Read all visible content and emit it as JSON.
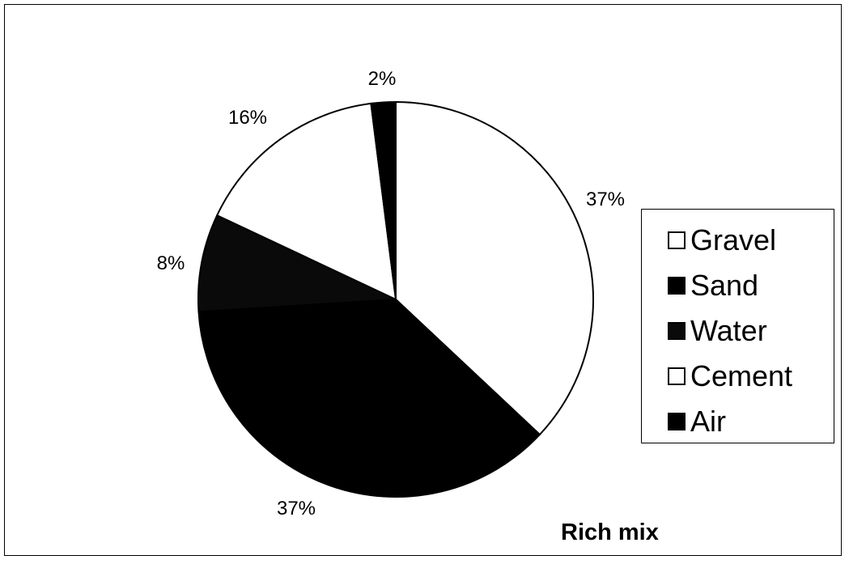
{
  "chart_data": {
    "type": "pie",
    "title": "Rich mix",
    "slices": [
      {
        "label": "Gravel",
        "value": 37,
        "value_label": "37%",
        "color": "#ffffff"
      },
      {
        "label": "Sand",
        "value": 37,
        "value_label": "37%",
        "color": "#000000"
      },
      {
        "label": "Water",
        "value": 8,
        "value_label": "8%",
        "color": "#0a0a0a"
      },
      {
        "label": "Cement",
        "value": 16,
        "value_label": "16%",
        "color": "#ffffff"
      },
      {
        "label": "Air",
        "value": 2,
        "value_label": "2%",
        "color": "#000000"
      }
    ],
    "legend_position": "right"
  }
}
